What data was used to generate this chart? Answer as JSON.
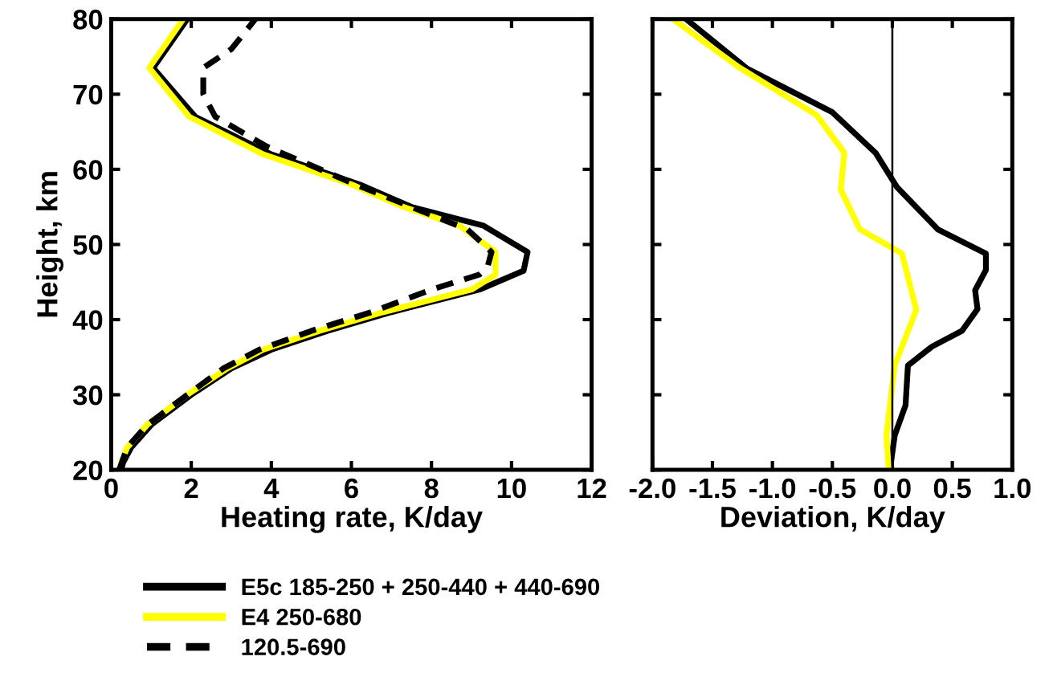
{
  "chart_data": [
    {
      "type": "line",
      "xlabel": "Heating rate, K/day",
      "ylabel": "Height, km",
      "xlim": [
        0,
        12
      ],
      "xticks": [
        0,
        2,
        4,
        6,
        8,
        10,
        12
      ],
      "ylim": [
        20,
        80
      ],
      "yticks": [
        20,
        30,
        40,
        50,
        60,
        70,
        80
      ],
      "legend": "bottom",
      "grid": false,
      "series": [
        {
          "name": "E5c 185-250 + 250-440 + 440-690",
          "color": "#000000",
          "line_style": "solid",
          "x": [
            0.25,
            0.3,
            0.5,
            1.0,
            2.0,
            3.0,
            4.0,
            5.4,
            7.0,
            9.2,
            10.3,
            10.4,
            9.3,
            7.5,
            6.2,
            4.0,
            2.1,
            1.05,
            1.9
          ],
          "values": [
            20,
            21,
            23,
            26,
            30,
            33.5,
            36,
            38.5,
            41,
            44,
            46.5,
            49,
            52.5,
            55,
            58,
            62,
            67,
            73.5,
            80
          ]
        },
        {
          "name": "E4 250-680",
          "color": "#ffff00",
          "line_style": "solid",
          "x": [
            0.2,
            0.25,
            0.4,
            0.9,
            1.9,
            2.9,
            3.8,
            5.2,
            6.8,
            9.0,
            9.6,
            9.6,
            8.7,
            7.3,
            6.0,
            3.8,
            1.95,
            0.95,
            1.8
          ],
          "values": [
            20,
            21,
            23,
            26,
            30,
            33.5,
            36,
            38.5,
            41,
            44,
            46,
            49,
            52.5,
            55,
            58,
            62,
            67,
            73.5,
            80
          ]
        },
        {
          "name": "120.5-690",
          "color": "#000000",
          "line_style": "dashed",
          "x": [
            0.2,
            0.4,
            0.9,
            1.9,
            2.8,
            3.7,
            5.0,
            6.5,
            8.0,
            9.2,
            9.4,
            9.5,
            8.9,
            7.5,
            6.1,
            3.9,
            2.6,
            2.3,
            2.3,
            3.0,
            3.6
          ],
          "values": [
            20,
            23,
            26,
            30,
            33.5,
            36,
            38.5,
            41,
            44,
            46,
            47,
            49,
            52,
            55,
            58,
            63,
            67,
            70,
            73.5,
            76,
            80
          ]
        }
      ]
    },
    {
      "type": "line",
      "xlabel": "Deviation, K/day",
      "xlim": [
        -2.0,
        1.0
      ],
      "xticks": [
        {
          "value": -2.0,
          "label": "-2.0"
        },
        {
          "value": -1.5,
          "label": "-1.5"
        },
        {
          "value": -1.0,
          "label": "-1.0"
        },
        {
          "value": -0.5,
          "label": "-0.5"
        },
        {
          "value": 0.0,
          "label": "0.0"
        },
        {
          "value": 0.5,
          "label": "0.5"
        },
        {
          "value": 1.0,
          "label": "1.0"
        }
      ],
      "ylim": [
        20,
        80
      ],
      "yticks": [
        {
          "value": 20,
          "label": null
        },
        {
          "value": 30,
          "label": null
        },
        {
          "value": 40,
          "label": null
        },
        {
          "value": 50,
          "label": null
        },
        {
          "value": 60,
          "label": null
        },
        {
          "value": 70,
          "label": null
        },
        {
          "value": 80,
          "label": null
        }
      ],
      "tick_labels": "x",
      "grid": false,
      "ref_lines": [
        {
          "axis": "x",
          "value": 0,
          "color": "#000000"
        }
      ],
      "series": [
        {
          "color": "#000000",
          "x": [
            -0.02,
            0.02,
            0.11,
            0.13,
            0.33,
            0.58,
            0.71,
            0.69,
            0.78,
            0.78,
            0.38,
            0.04,
            -0.14,
            -0.5,
            -1.21,
            -1.72
          ],
          "values": [
            20,
            24.6,
            28.6,
            33.9,
            36.4,
            38.5,
            41.4,
            43.9,
            46.6,
            48.8,
            52,
            57.6,
            62.2,
            67.6,
            73.4,
            80
          ]
        },
        {
          "color": "#ffff00",
          "x": [
            -0.03,
            -0.05,
            0.02,
            0.2,
            0.08,
            -0.27,
            -0.43,
            -0.4,
            -0.63,
            -1.28,
            -1.83
          ],
          "values": [
            20,
            24.6,
            33.9,
            41.3,
            48.8,
            52,
            57.3,
            62.2,
            67.2,
            73.6,
            80
          ]
        }
      ]
    }
  ]
}
